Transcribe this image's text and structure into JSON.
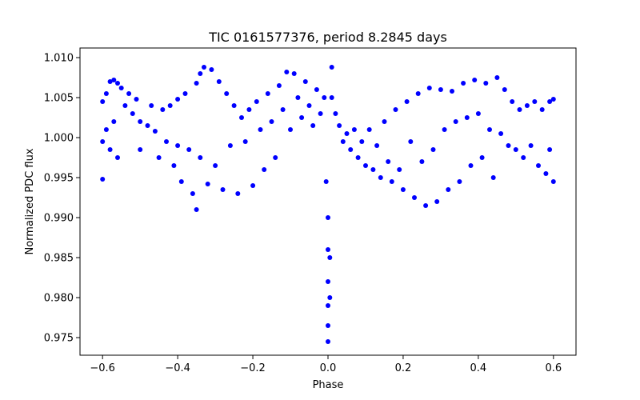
{
  "chart_data": {
    "type": "scatter",
    "title": "TIC 0161577376, period 8.2845 days",
    "xlabel": "Phase",
    "ylabel": "Normalized PDC flux",
    "xlim": [
      -0.66,
      0.66
    ],
    "ylim": [
      0.9728,
      1.0112
    ],
    "x_ticks": [
      -0.6,
      -0.4,
      -0.2,
      0.0,
      0.2,
      0.4,
      0.6
    ],
    "x_tick_labels": [
      "−0.6",
      "−0.4",
      "−0.2",
      "0.0",
      "0.2",
      "0.4",
      "0.6"
    ],
    "y_ticks": [
      0.975,
      0.98,
      0.985,
      0.99,
      0.995,
      1.0,
      1.005,
      1.01
    ],
    "y_tick_labels": [
      "0.975",
      "0.980",
      "0.985",
      "0.990",
      "0.995",
      "1.000",
      "1.005",
      "1.010"
    ],
    "grid": false,
    "marker_color": "#0000ff",
    "series": [
      {
        "points": [
          [
            -0.6,
            1.0045
          ],
          [
            -0.6,
            0.9995
          ],
          [
            -0.6,
            0.9948
          ],
          [
            -0.59,
            1.0055
          ],
          [
            -0.59,
            1.001
          ],
          [
            -0.58,
            1.007
          ],
          [
            -0.58,
            0.9985
          ],
          [
            -0.57,
            1.0072
          ],
          [
            -0.57,
            1.002
          ],
          [
            -0.56,
            1.0068
          ],
          [
            -0.56,
            0.9975
          ],
          [
            -0.55,
            1.0062
          ],
          [
            -0.54,
            1.004
          ],
          [
            -0.53,
            1.0055
          ],
          [
            -0.52,
            1.003
          ],
          [
            -0.51,
            1.0048
          ],
          [
            -0.5,
            1.002
          ],
          [
            -0.5,
            0.9985
          ],
          [
            -0.48,
            1.0015
          ],
          [
            -0.47,
            1.004
          ],
          [
            -0.46,
            1.0008
          ],
          [
            -0.45,
            0.9975
          ],
          [
            -0.44,
            1.0035
          ],
          [
            -0.43,
            0.9995
          ],
          [
            -0.42,
            1.004
          ],
          [
            -0.41,
            0.9965
          ],
          [
            -0.4,
            1.0048
          ],
          [
            -0.4,
            0.999
          ],
          [
            -0.39,
            0.9945
          ],
          [
            -0.38,
            1.0055
          ],
          [
            -0.37,
            0.9985
          ],
          [
            -0.36,
            0.993
          ],
          [
            -0.35,
            1.0068
          ],
          [
            -0.35,
            0.991
          ],
          [
            -0.34,
            1.008
          ],
          [
            -0.34,
            0.9975
          ],
          [
            -0.33,
            1.0088
          ],
          [
            -0.32,
            0.9942
          ],
          [
            -0.31,
            1.0085
          ],
          [
            -0.3,
            0.9965
          ],
          [
            -0.29,
            1.007
          ],
          [
            -0.28,
            0.9935
          ],
          [
            -0.27,
            1.0055
          ],
          [
            -0.26,
            0.999
          ],
          [
            -0.25,
            1.004
          ],
          [
            -0.24,
            0.993
          ],
          [
            -0.23,
            1.0025
          ],
          [
            -0.22,
            0.9995
          ],
          [
            -0.21,
            1.0035
          ],
          [
            -0.2,
            0.994
          ],
          [
            -0.19,
            1.0045
          ],
          [
            -0.18,
            1.001
          ],
          [
            -0.17,
            0.996
          ],
          [
            -0.16,
            1.0055
          ],
          [
            -0.15,
            1.002
          ],
          [
            -0.14,
            0.9975
          ],
          [
            -0.13,
            1.0065
          ],
          [
            -0.12,
            1.0035
          ],
          [
            -0.11,
            1.0082
          ],
          [
            -0.1,
            1.001
          ],
          [
            -0.09,
            1.008
          ],
          [
            -0.08,
            1.005
          ],
          [
            -0.07,
            1.0025
          ],
          [
            -0.06,
            1.007
          ],
          [
            -0.05,
            1.004
          ],
          [
            -0.04,
            1.0015
          ],
          [
            -0.03,
            1.006
          ],
          [
            -0.02,
            1.003
          ],
          [
            -0.01,
            1.005
          ],
          [
            -0.005,
            0.9945
          ],
          [
            0.0,
            0.99
          ],
          [
            0.0,
            0.986
          ],
          [
            0.0,
            0.982
          ],
          [
            0.0,
            0.979
          ],
          [
            0.0,
            0.9765
          ],
          [
            0.0,
            0.9745
          ],
          [
            0.005,
            0.98
          ],
          [
            0.005,
            0.985
          ],
          [
            0.01,
            1.0088
          ],
          [
            0.01,
            1.005
          ],
          [
            0.02,
            1.003
          ],
          [
            0.03,
            1.0015
          ],
          [
            0.04,
            0.9995
          ],
          [
            0.05,
            1.0005
          ],
          [
            0.06,
            0.9985
          ],
          [
            0.07,
            1.001
          ],
          [
            0.08,
            0.9975
          ],
          [
            0.09,
            0.9995
          ],
          [
            0.1,
            0.9965
          ],
          [
            0.11,
            1.001
          ],
          [
            0.12,
            0.996
          ],
          [
            0.13,
            0.999
          ],
          [
            0.14,
            0.995
          ],
          [
            0.15,
            1.002
          ],
          [
            0.16,
            0.997
          ],
          [
            0.17,
            0.9945
          ],
          [
            0.18,
            1.0035
          ],
          [
            0.19,
            0.996
          ],
          [
            0.2,
            0.9935
          ],
          [
            0.21,
            1.0045
          ],
          [
            0.22,
            0.9995
          ],
          [
            0.23,
            0.9925
          ],
          [
            0.24,
            1.0055
          ],
          [
            0.25,
            0.997
          ],
          [
            0.26,
            0.9915
          ],
          [
            0.27,
            1.0062
          ],
          [
            0.28,
            0.9985
          ],
          [
            0.29,
            0.992
          ],
          [
            0.3,
            1.006
          ],
          [
            0.31,
            1.001
          ],
          [
            0.32,
            0.9935
          ],
          [
            0.33,
            1.0058
          ],
          [
            0.34,
            1.002
          ],
          [
            0.35,
            0.9945
          ],
          [
            0.36,
            1.0068
          ],
          [
            0.37,
            1.0025
          ],
          [
            0.38,
            0.9965
          ],
          [
            0.39,
            1.0072
          ],
          [
            0.4,
            1.003
          ],
          [
            0.41,
            0.9975
          ],
          [
            0.42,
            1.0068
          ],
          [
            0.43,
            1.001
          ],
          [
            0.44,
            0.995
          ],
          [
            0.45,
            1.0075
          ],
          [
            0.46,
            1.0005
          ],
          [
            0.47,
            1.006
          ],
          [
            0.48,
            0.999
          ],
          [
            0.49,
            1.0045
          ],
          [
            0.5,
            0.9985
          ],
          [
            0.51,
            1.0035
          ],
          [
            0.52,
            0.9975
          ],
          [
            0.53,
            1.004
          ],
          [
            0.54,
            0.999
          ],
          [
            0.55,
            1.0045
          ],
          [
            0.56,
            0.9965
          ],
          [
            0.57,
            1.0035
          ],
          [
            0.58,
            0.9955
          ],
          [
            0.59,
            1.0045
          ],
          [
            0.59,
            0.9985
          ],
          [
            0.6,
            1.0048
          ],
          [
            0.6,
            0.9945
          ]
        ]
      }
    ]
  }
}
